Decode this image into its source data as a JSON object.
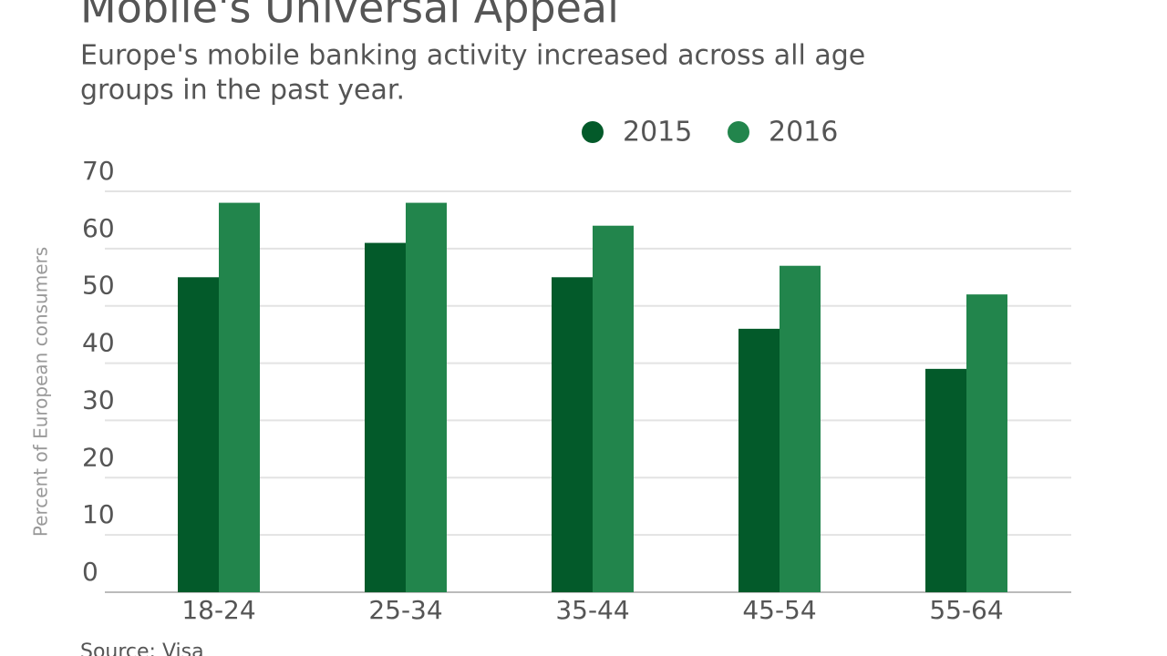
{
  "chart_data": {
    "type": "bar",
    "title": "Mobile's Universal Appeal",
    "subtitle": [
      "Europe's mobile banking activity increased across all age",
      "groups in the past year."
    ],
    "y_label": "Percent of European consumers",
    "source": "Source: Visa",
    "categories": [
      "18-24",
      "25-34",
      "35-44",
      "45-54",
      "55-64"
    ],
    "series": [
      {
        "name": "2015",
        "color": "#035a2a",
        "values": [
          55,
          61,
          55,
          46,
          39
        ]
      },
      {
        "name": "2016",
        "color": "#22854c",
        "values": [
          68,
          68,
          64,
          57,
          52
        ]
      }
    ],
    "ylim": [
      0,
      70
    ],
    "yticks": [
      0,
      10,
      20,
      30,
      40,
      50,
      60,
      70
    ],
    "grid": true,
    "legend": "top"
  }
}
